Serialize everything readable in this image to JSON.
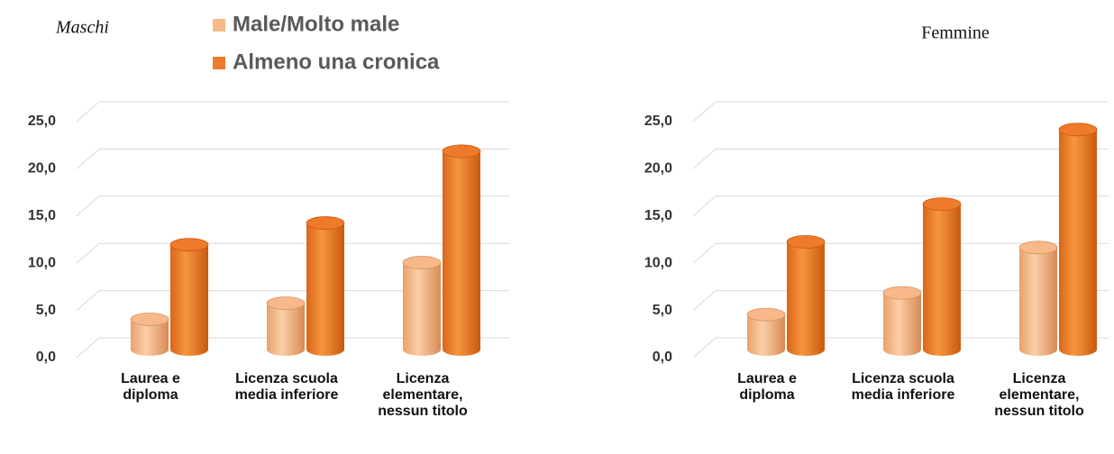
{
  "chart_data": [
    {
      "type": "bar",
      "title": "Maschi",
      "categories": [
        "Laurea e diploma",
        "Licenza scuola media inferiore",
        "Licenza elementare, nessun titolo"
      ],
      "series": [
        {
          "name": "Male/Molto male",
          "color": "#f7b98a",
          "values": [
            3.2,
            4.9,
            9.2
          ]
        },
        {
          "name": "Almeno una cronica",
          "color": "#ee7a2a",
          "values": [
            11.1,
            13.4,
            21.0
          ]
        }
      ],
      "ylim": [
        0,
        25
      ],
      "yticks": [
        {
          "value": 0,
          "label": "0,0"
        },
        {
          "value": 5,
          "label": "5,0"
        },
        {
          "value": 10,
          "label": "10,0"
        },
        {
          "value": 15,
          "label": "15,0"
        },
        {
          "value": 20,
          "label": "20,0"
        },
        {
          "value": 25,
          "label": "25,0"
        }
      ],
      "grid": true
    },
    {
      "type": "bar",
      "title": "Femmine",
      "categories": [
        "Laurea e diploma",
        "Licenza scuola media inferiore",
        "Licenza elementare, nessun titolo"
      ],
      "series": [
        {
          "values": [
            3.7,
            6.0,
            10.8
          ]
        },
        {
          "values": [
            11.4,
            15.4,
            23.3
          ]
        }
      ],
      "ylim": [
        0,
        25
      ],
      "yticks": [
        {
          "value": 0,
          "label": "0,0"
        },
        {
          "value": 5,
          "label": "5,0"
        },
        {
          "value": 10,
          "label": "10,0"
        },
        {
          "value": 15,
          "label": "15,0"
        },
        {
          "value": 20,
          "label": "20,0"
        },
        {
          "value": 25,
          "label": "25,0"
        }
      ],
      "grid": true
    }
  ]
}
